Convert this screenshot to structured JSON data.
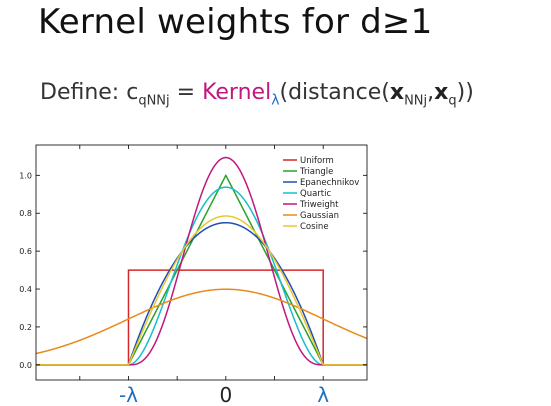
{
  "title": "Kernel weights for d≥1",
  "formula": {
    "define": "Define: c",
    "sub1": "qNNj",
    "equals": " = ",
    "kernel": "Kernel",
    "lambda_sub": "λ",
    "open": "(distance(",
    "xbold": "x",
    "sub2": "NNj",
    "comma": ",",
    "xbold2": "x",
    "sub3": "q",
    "close": "))"
  },
  "chart_data": {
    "type": "line",
    "xlim": [
      -1.95,
      1.45
    ],
    "ylim": [
      -0.08,
      1.16
    ],
    "yticks": [
      0.0,
      0.2,
      0.4,
      0.6,
      0.8,
      1.0
    ],
    "ytick_labels": [
      "0.0",
      "0.2",
      "0.4",
      "0.6",
      "0.8",
      "1.0"
    ],
    "xticks": [
      -1,
      0,
      1
    ],
    "xtick_labels": [
      "-λ",
      "0",
      "λ"
    ],
    "xtick_colors": [
      "#1f6fc0",
      "#222222",
      "#1f6fc0"
    ],
    "legend_position": "top-right",
    "grid": false,
    "series": [
      {
        "name": "Uniform",
        "color": "#d62728",
        "kernel": "uniform"
      },
      {
        "name": "Triangle",
        "color": "#2ca02c",
        "kernel": "triangle"
      },
      {
        "name": "Epanechnikov",
        "color": "#1f4fb4",
        "kernel": "epanechnikov"
      },
      {
        "name": "Quartic",
        "color": "#17becf",
        "kernel": "quartic"
      },
      {
        "name": "Triweight",
        "color": "#c0187e",
        "kernel": "triweight"
      },
      {
        "name": "Gaussian",
        "color": "#e88a1a",
        "kernel": "gaussian"
      },
      {
        "name": "Cosine",
        "color": "#e8c830",
        "kernel": "cosine"
      }
    ]
  }
}
